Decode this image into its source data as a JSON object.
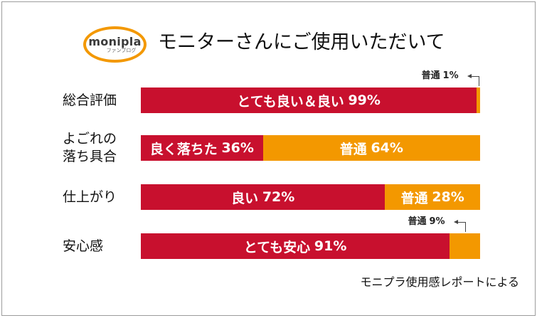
{
  "logo": {
    "text": "monipla",
    "subtext": "ファンブログ"
  },
  "colors": {
    "positive": "#c8102e",
    "neutral": "#f39800",
    "logo_ring": "#f39800",
    "frame": "#9c9c9c"
  },
  "chart_data": {
    "type": "bar",
    "orientation": "horizontal",
    "stacked": true,
    "title": "モニターさんにご使用いただいて",
    "source": "モニプラ使用感レポートによる",
    "unit": "%",
    "xlim": [
      0,
      100
    ],
    "grid": false,
    "legend": "none",
    "rows": [
      {
        "label_lines": [
          "総合評価"
        ],
        "segments": [
          {
            "name": "とても良い＆良い",
            "value": 99,
            "color": "#c8102e",
            "label_position": "inside"
          },
          {
            "name": "普通",
            "value": 1,
            "color": "#f39800",
            "label_position": "callout"
          }
        ]
      },
      {
        "label_lines": [
          "よごれの",
          "落ち具合"
        ],
        "segments": [
          {
            "name": "良く落ちた",
            "value": 36,
            "color": "#c8102e",
            "label_position": "inside"
          },
          {
            "name": "普通",
            "value": 64,
            "color": "#f39800",
            "label_position": "inside"
          }
        ]
      },
      {
        "label_lines": [
          "仕上がり"
        ],
        "segments": [
          {
            "name": "良い",
            "value": 72,
            "color": "#c8102e",
            "label_position": "inside"
          },
          {
            "name": "普通",
            "value": 28,
            "color": "#f39800",
            "label_position": "inside"
          }
        ]
      },
      {
        "label_lines": [
          "安心感"
        ],
        "segments": [
          {
            "name": "とても安心",
            "value": 91,
            "color": "#c8102e",
            "label_position": "inside"
          },
          {
            "name": "普通",
            "value": 9,
            "color": "#f39800",
            "label_position": "callout"
          }
        ]
      }
    ]
  }
}
